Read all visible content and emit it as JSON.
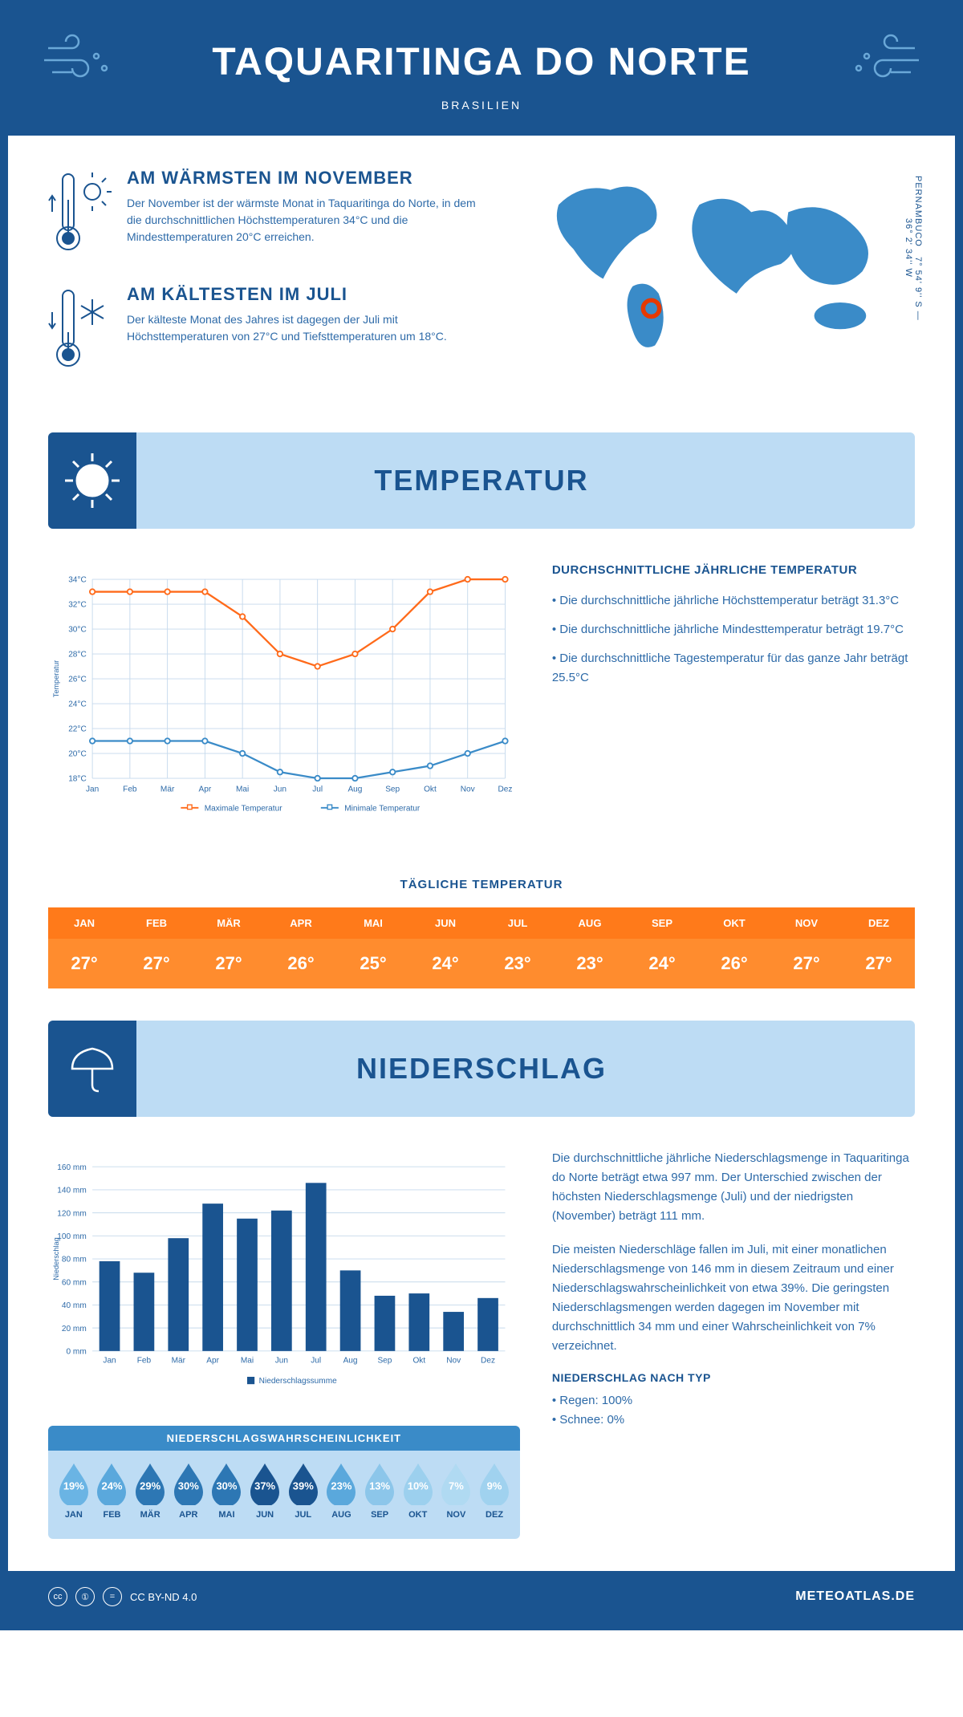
{
  "header": {
    "title": "TAQUARITINGA DO NORTE",
    "country": "BRASILIEN"
  },
  "coords": {
    "region": "PERNAMBUCO",
    "lat_lon": "7° 54' 9'' S — 36° 2' 34'' W"
  },
  "warm": {
    "title": "AM WÄRMSTEN IM NOVEMBER",
    "text": "Der November ist der wärmste Monat in Taquaritinga do Norte, in dem die durchschnittlichen Höchsttemperaturen 34°C und die Mindesttemperaturen 20°C erreichen."
  },
  "cold": {
    "title": "AM KÄLTESTEN IM JULI",
    "text": "Der kälteste Monat des Jahres ist dagegen der Juli mit Höchsttemperaturen von 27°C und Tiefsttemperaturen um 18°C."
  },
  "temp_section": {
    "title": "TEMPERATUR"
  },
  "temp_stats": {
    "title": "DURCHSCHNITTLICHE JÄHRLICHE TEMPERATUR",
    "b1": "• Die durchschnittliche jährliche Höchsttemperatur beträgt 31.3°C",
    "b2": "• Die durchschnittliche jährliche Mindesttemperatur beträgt 19.7°C",
    "b3": "• Die durchschnittliche Tagestemperatur für das ganze Jahr beträgt 25.5°C"
  },
  "temp_chart": {
    "months": [
      "Jan",
      "Feb",
      "Mär",
      "Apr",
      "Mai",
      "Jun",
      "Jul",
      "Aug",
      "Sep",
      "Okt",
      "Nov",
      "Dez"
    ],
    "y_ticks": [
      18,
      20,
      22,
      24,
      26,
      28,
      30,
      32,
      34
    ],
    "y_label": "Temperatur",
    "max_series": [
      33,
      33,
      33,
      33,
      31,
      28,
      27,
      28,
      30,
      33,
      34,
      34
    ],
    "min_series": [
      21,
      21,
      21,
      21,
      20,
      18.5,
      18,
      18,
      18.5,
      19,
      20,
      21
    ],
    "legend_max": "Maximale Temperatur",
    "legend_min": "Minimale Temperatur",
    "max_color": "#ff6a1a",
    "min_color": "#3a8bc8",
    "grid_color": "#c5d9ec"
  },
  "daily": {
    "title": "TÄGLICHE TEMPERATUR",
    "months": [
      "JAN",
      "FEB",
      "MÄR",
      "APR",
      "MAI",
      "JUN",
      "JUL",
      "AUG",
      "SEP",
      "OKT",
      "NOV",
      "DEZ"
    ],
    "values": [
      "27°",
      "27°",
      "27°",
      "26°",
      "25°",
      "24°",
      "23°",
      "23°",
      "24°",
      "26°",
      "27°",
      "27°"
    ]
  },
  "precip_section": {
    "title": "NIEDERSCHLAG"
  },
  "precip_chart": {
    "months": [
      "Jan",
      "Feb",
      "Mär",
      "Apr",
      "Mai",
      "Jun",
      "Jul",
      "Aug",
      "Sep",
      "Okt",
      "Nov",
      "Dez"
    ],
    "y_ticks": [
      0,
      20,
      40,
      60,
      80,
      100,
      120,
      140,
      160
    ],
    "y_label": "Niederschlag",
    "values": [
      78,
      68,
      98,
      128,
      115,
      122,
      146,
      70,
      48,
      50,
      34,
      46
    ],
    "legend": "Niederschlagssumme",
    "bar_color": "#1a5490",
    "grid_color": "#c5d9ec"
  },
  "precip_text": {
    "p1": "Die durchschnittliche jährliche Niederschlagsmenge in Taquaritinga do Norte beträgt etwa 997 mm. Der Unterschied zwischen der höchsten Niederschlagsmenge (Juli) und der niedrigsten (November) beträgt 111 mm.",
    "p2": "Die meisten Niederschläge fallen im Juli, mit einer monatlichen Niederschlagsmenge von 146 mm in diesem Zeitraum und einer Niederschlagswahrscheinlichkeit von etwa 39%. Die geringsten Niederschlagsmengen werden dagegen im November mit durchschnittlich 34 mm und einer Wahrscheinlichkeit von 7% verzeichnet."
  },
  "precip_type": {
    "title": "NIEDERSCHLAG NACH TYP",
    "rain": "• Regen: 100%",
    "snow": "• Schnee: 0%"
  },
  "precip_prob": {
    "title": "NIEDERSCHLAGSWAHRSCHEINLICHKEIT",
    "months": [
      "JAN",
      "FEB",
      "MÄR",
      "APR",
      "MAI",
      "JUN",
      "JUL",
      "AUG",
      "SEP",
      "OKT",
      "NOV",
      "DEZ"
    ],
    "values": [
      "19%",
      "24%",
      "29%",
      "30%",
      "30%",
      "37%",
      "39%",
      "23%",
      "13%",
      "10%",
      "7%",
      "9%"
    ],
    "drop_colors": [
      "#6ab4e4",
      "#5aa8dc",
      "#2d77b4",
      "#2d77b4",
      "#2d77b4",
      "#1a5490",
      "#1a5490",
      "#5aa8dc",
      "#8cc6ea",
      "#9cd0ee",
      "#b0daf2",
      "#a0d2ef"
    ]
  },
  "footer": {
    "license": "CC BY-ND 4.0",
    "site": "METEOATLAS.DE"
  }
}
